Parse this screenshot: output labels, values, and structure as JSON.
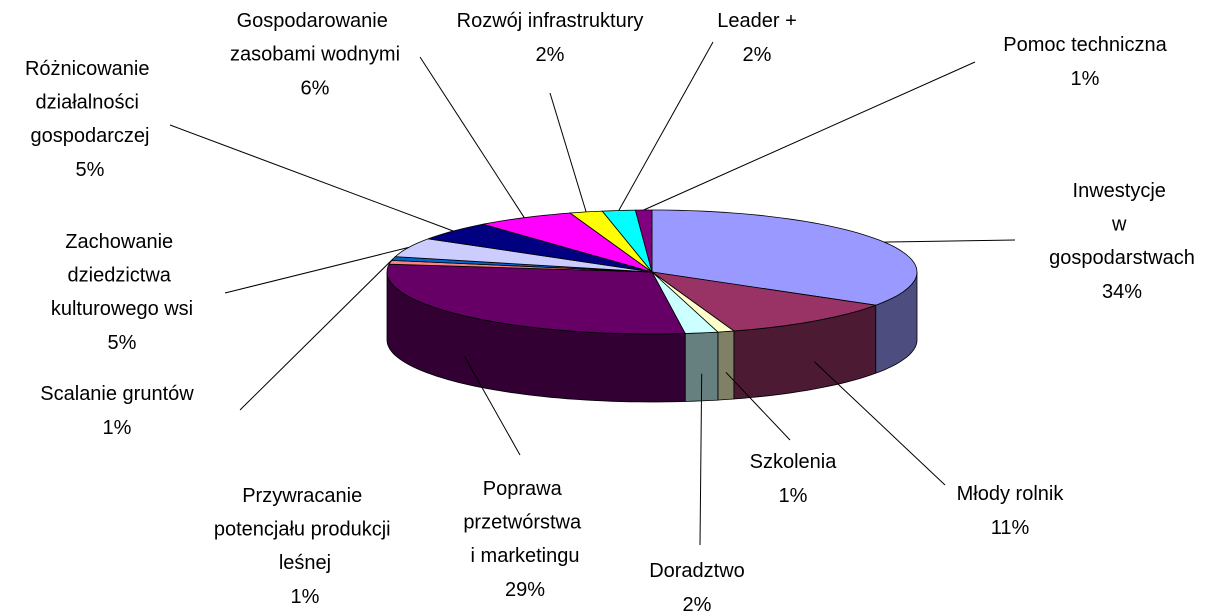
{
  "chart_data": {
    "type": "pie",
    "three_d": true,
    "categories": [
      "Inwestycje w gospodarstwach",
      "Młody rolnik",
      "Szkolenia",
      "Doradztwo",
      "Poprawa przetwórstwa i marketingu",
      "Przywracanie potencjału produkcji leśnej",
      "Scalanie gruntów",
      "Zachowanie dziedzictwa kulturowego wsi",
      "Różnicowanie działalności gospodarczej",
      "Gospodarowanie zasobami wodnymi",
      "Rozwój infrastruktury",
      "Leader +",
      "Pomoc techniczna"
    ],
    "values": [
      34,
      11,
      1,
      2,
      29,
      1,
      1,
      5,
      5,
      6,
      2,
      2,
      1
    ],
    "value_labels": [
      "34%",
      "11%",
      "1%",
      "2%",
      "29%",
      "1%",
      "1%",
      "5%",
      "5%",
      "6%",
      "2%",
      "2%",
      "1%"
    ],
    "colors": [
      "#9999FF",
      "#993366",
      "#FFFFCC",
      "#CCFFFF",
      "#660066",
      "#FF8080",
      "#0066CC",
      "#CCCCFF",
      "#000080",
      "#FF00FF",
      "#FFFF00",
      "#00FFFF",
      "#800080"
    ]
  }
}
